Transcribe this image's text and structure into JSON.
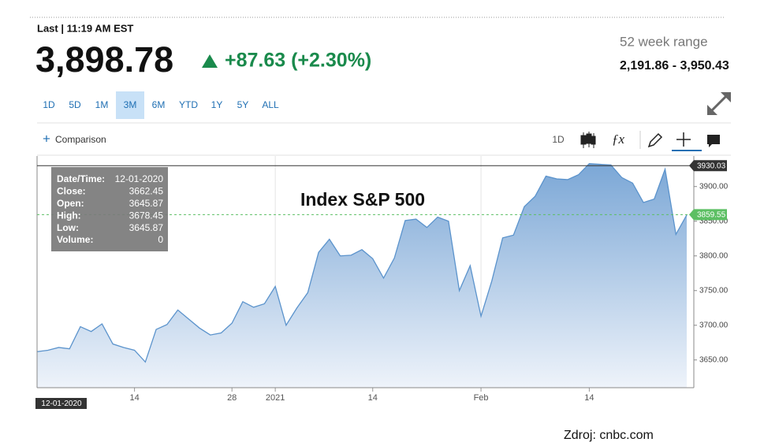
{
  "header": {
    "last": "Last | 11:19 AM EST",
    "price": "3,898.78",
    "change": "+87.63 (+2.30%)",
    "range_label": "52 week range",
    "range": "2,191.86 - 3,950.43"
  },
  "periods": {
    "items": [
      "1D",
      "5D",
      "1M",
      "3M",
      "6M",
      "YTD",
      "1Y",
      "5Y",
      "ALL"
    ],
    "selected": 3
  },
  "toolbar": {
    "comparison": "Comparison",
    "interval": "1D"
  },
  "tooltip": {
    "rows": [
      [
        "Date/Time:",
        "12-01-2020"
      ],
      [
        "Close:",
        "3662.45"
      ],
      [
        "Open:",
        "3645.87"
      ],
      [
        "High:",
        "3678.45"
      ],
      [
        "Low:",
        "3645.87"
      ],
      [
        "Volume:",
        "0"
      ]
    ]
  },
  "chart_data": {
    "type": "line",
    "title": "Index S&P 500",
    "color": "#5b93cc",
    "categories": [
      null,
      null,
      null,
      null,
      null,
      null,
      null,
      null,
      null,
      "14",
      null,
      null,
      null,
      null,
      null,
      null,
      null,
      null,
      "28",
      null,
      null,
      null,
      "2021",
      null,
      null,
      null,
      null,
      null,
      null,
      null,
      null,
      "14",
      null,
      null,
      null,
      null,
      null,
      null,
      null,
      null,
      null,
      "Feb",
      null,
      null,
      null,
      null,
      null,
      null,
      null,
      null,
      null,
      "14",
      null,
      null,
      null,
      null,
      null,
      null,
      null,
      null,
      null
    ],
    "values": [
      3662,
      3664,
      3668,
      3666,
      3698,
      3691,
      3702,
      3673,
      3668,
      3664,
      3647,
      3694,
      3701,
      3722,
      3709,
      3696,
      3686,
      3689,
      3703,
      3734,
      3726,
      3731,
      3756,
      3700,
      3725,
      3747,
      3805,
      3824,
      3800,
      3801,
      3809,
      3796,
      3768,
      3797,
      3851,
      3853,
      3841,
      3856,
      3850,
      3750,
      3786,
      3713,
      3764,
      3826,
      3830,
      3871,
      3886,
      3915,
      3911,
      3910,
      3917,
      3933,
      3932,
      3931,
      3913,
      3905,
      3877,
      3882,
      3925,
      3831,
      3859
    ],
    "ylim": [
      3610,
      3944
    ],
    "yticks": [
      {
        "value": 3650,
        "label": "3650.00"
      },
      {
        "value": 3700,
        "label": "3700.00"
      },
      {
        "value": 3750,
        "label": "3750.00"
      },
      {
        "value": 3800,
        "label": "3800.00"
      },
      {
        "value": 3850,
        "label": "3850.00"
      },
      {
        "value": 3900,
        "label": "3900.00"
      }
    ],
    "grid_ticks": [
      "2021",
      "Feb"
    ],
    "reference_lines": [
      {
        "value": 3930.03,
        "color": "#333333",
        "dashed": false
      },
      {
        "value": 3859.55,
        "color": "#5cbf63",
        "dashed": true
      }
    ]
  },
  "footer": "Zdroj: cnbc.com"
}
